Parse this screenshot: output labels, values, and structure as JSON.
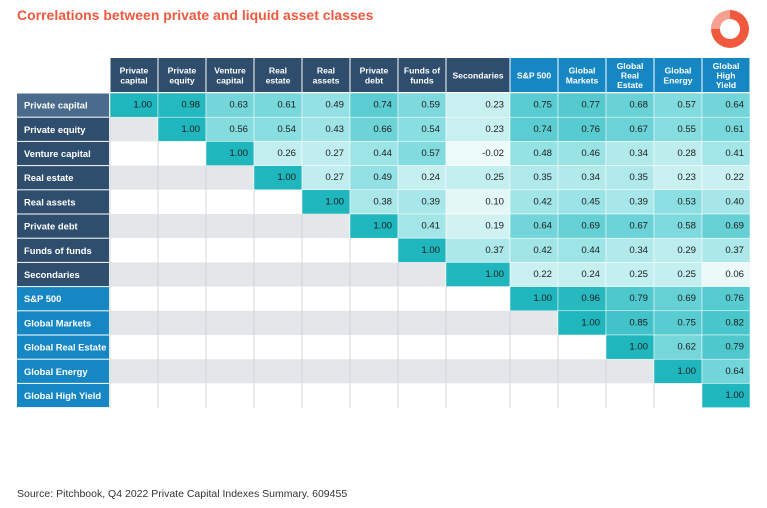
{
  "title": "Correlations between private and liquid asset classes",
  "source": "Source: Pitchbook, Q4 2022 Private Capital Indexes Summary. 609455",
  "colors": {
    "title": "#f0593e",
    "private_header": "#2f4e6e",
    "private_first_row": "#4a6b8c",
    "liquid_header": "#1787c4",
    "empty_odd": "#ffffff",
    "empty_even": "#e4e7ea"
  },
  "chart_data": {
    "type": "heatmap",
    "title": "Correlations between private and liquid asset classes",
    "columns": [
      [
        "Private",
        "capital"
      ],
      [
        "Private",
        "equity"
      ],
      [
        "Venture",
        "capital"
      ],
      [
        "Real",
        "estate"
      ],
      [
        "Real",
        "assets"
      ],
      [
        "Private",
        "debt"
      ],
      [
        "Funds of",
        "funds"
      ],
      [
        "Secondaries"
      ],
      [
        "S&P 500"
      ],
      [
        "Global",
        "Markets"
      ],
      [
        "Global",
        "Real",
        "Estate"
      ],
      [
        "Global",
        "Energy"
      ],
      [
        "Global",
        "High",
        "Yield"
      ]
    ],
    "rows": [
      "Private capital",
      "Private equity",
      "Venture capital",
      "Real estate",
      "Real assets",
      "Private debt",
      "Funds of funds",
      "Secondaries",
      "S&P 500",
      "Global Markets",
      "Global Real Estate",
      "Global Energy",
      "Global High Yield"
    ],
    "private_count": 8,
    "values": [
      [
        "1.00",
        "0.98",
        "0.63",
        "0.61",
        "0.49",
        "0.74",
        "0.59",
        "0.23",
        "0.75",
        "0.77",
        "0.68",
        "0.57",
        "0.64"
      ],
      [
        null,
        "1.00",
        "0.56",
        "0.54",
        "0.43",
        "0.66",
        "0.54",
        "0.23",
        "0.74",
        "0.76",
        "0.67",
        "0.55",
        "0.61"
      ],
      [
        null,
        null,
        "1.00",
        "0.26",
        "0.27",
        "0.44",
        "0.57",
        "-0.02",
        "0.48",
        "0.46",
        "0.34",
        "0.28",
        "0.41"
      ],
      [
        null,
        null,
        null,
        "1.00",
        "0.27",
        "0.49",
        "0.24",
        "0.25",
        "0.35",
        "0.34",
        "0.35",
        "0.23",
        "0.22"
      ],
      [
        null,
        null,
        null,
        null,
        "1.00",
        "0.38",
        "0.39",
        "0.10",
        "0.42",
        "0.45",
        "0.39",
        "0.53",
        "0.40"
      ],
      [
        null,
        null,
        null,
        null,
        null,
        "1.00",
        "0.41",
        "0.19",
        "0.64",
        "0.69",
        "0.67",
        "0.58",
        "0.69"
      ],
      [
        null,
        null,
        null,
        null,
        null,
        null,
        "1.00",
        "0.37",
        "0.42",
        "0.44",
        "0.34",
        "0.29",
        "0.37"
      ],
      [
        null,
        null,
        null,
        null,
        null,
        null,
        null,
        "1.00",
        "0.22",
        "0.24",
        "0.25",
        "0.25",
        "0.06"
      ],
      [
        null,
        null,
        null,
        null,
        null,
        null,
        null,
        null,
        "1.00",
        "0.96",
        "0.79",
        "0.69",
        "0.76"
      ],
      [
        null,
        null,
        null,
        null,
        null,
        null,
        null,
        null,
        null,
        "1.00",
        "0.85",
        "0.75",
        "0.82"
      ],
      [
        null,
        null,
        null,
        null,
        null,
        null,
        null,
        null,
        null,
        null,
        "1.00",
        "0.62",
        "0.79"
      ],
      [
        null,
        null,
        null,
        null,
        null,
        null,
        null,
        null,
        null,
        null,
        null,
        "1.00",
        "0.64"
      ],
      [
        null,
        null,
        null,
        null,
        null,
        null,
        null,
        null,
        null,
        null,
        null,
        null,
        "1.00"
      ]
    ],
    "value_range": [
      -0.02,
      1.0
    ]
  }
}
